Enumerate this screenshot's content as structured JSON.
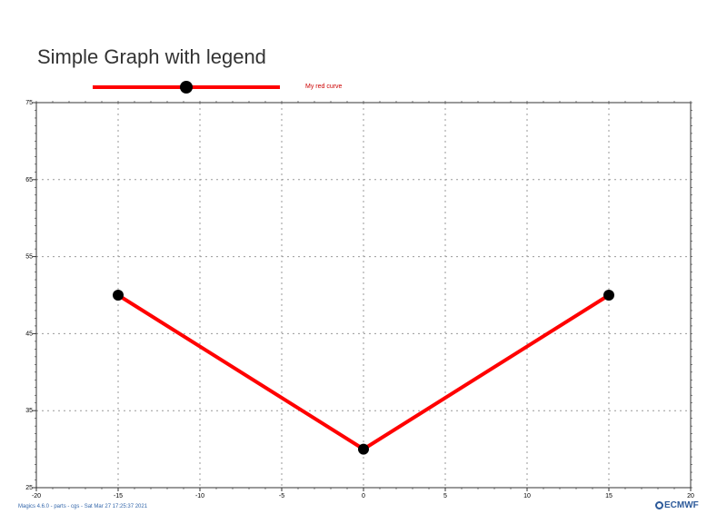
{
  "chart_data": {
    "type": "line",
    "title": "Simple Graph with legend",
    "xlim": [
      -20,
      20
    ],
    "ylim": [
      25,
      75
    ],
    "xticks": [
      -20,
      -15,
      -10,
      -5,
      0,
      5,
      10,
      15,
      20
    ],
    "yticks": [
      25,
      35,
      45,
      55,
      65,
      75
    ],
    "grid": true,
    "legend_position": "top",
    "series": [
      {
        "name": "My red curve",
        "x": [
          -15,
          0,
          15
        ],
        "y": [
          50,
          30,
          50
        ],
        "color": "#ff0000",
        "marker": "filled-circle",
        "marker_color": "#000000"
      }
    ]
  },
  "footer": {
    "text": "Magics 4.6.0 - parts - cgs - Sat Mar 27 17:25:37 2021",
    "color": "#3366aa"
  },
  "logo": {
    "text": "ECMWF",
    "icon": "ecmwf-logo-icon",
    "color": "#2d5a9a"
  },
  "colors": {
    "legend_text": "#cc0000",
    "grid": "#999999",
    "frame": "#333333"
  }
}
